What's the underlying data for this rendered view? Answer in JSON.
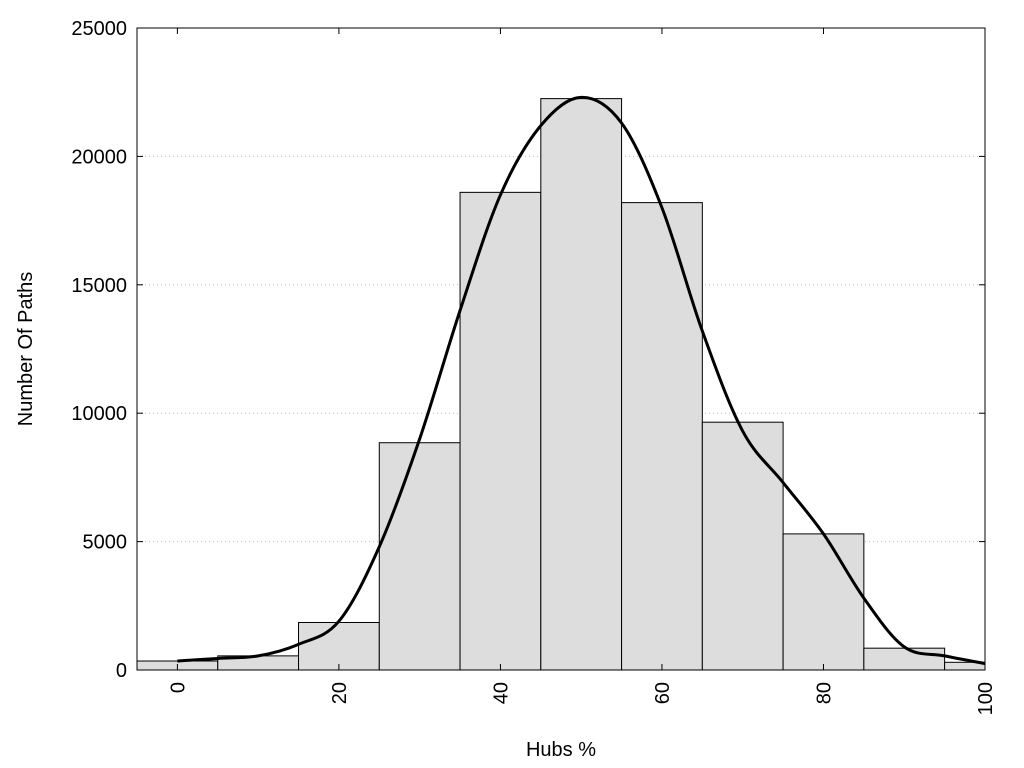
{
  "chart_data": {
    "type": "bar",
    "title": "",
    "xlabel": "Hubs %",
    "ylabel": "Number Of Paths",
    "xlim": [
      -5,
      100
    ],
    "ylim": [
      0,
      25000
    ],
    "grid": "horizontal-dotted",
    "x_ticks": [
      0,
      20,
      40,
      60,
      80,
      100
    ],
    "y_ticks": [
      0,
      5000,
      10000,
      15000,
      20000,
      25000
    ],
    "bin_width": 10,
    "bins": [
      {
        "center": 0,
        "value": 350
      },
      {
        "center": 10,
        "value": 550
      },
      {
        "center": 20,
        "value": 1850
      },
      {
        "center": 30,
        "value": 8850
      },
      {
        "center": 40,
        "value": 18600
      },
      {
        "center": 50,
        "value": 22250
      },
      {
        "center": 60,
        "value": 18200
      },
      {
        "center": 70,
        "value": 9650
      },
      {
        "center": 80,
        "value": 5300
      },
      {
        "center": 90,
        "value": 850
      },
      {
        "center": 100,
        "value": 300
      }
    ],
    "density_curve": {
      "x": [
        0,
        5,
        10,
        15,
        20,
        25,
        30,
        35,
        40,
        45,
        50,
        55,
        60,
        65,
        70,
        75,
        80,
        85,
        90,
        95,
        100
      ],
      "y": [
        350,
        450,
        550,
        1000,
        1900,
        4800,
        9000,
        14000,
        18500,
        21200,
        22300,
        21300,
        18000,
        13200,
        9300,
        7300,
        5300,
        2800,
        900,
        550,
        250
      ]
    },
    "colors": {
      "bar_fill": "#dddddd",
      "bar_stroke": "#000000",
      "curve": "#000000",
      "grid": "#bbbbbb"
    }
  }
}
